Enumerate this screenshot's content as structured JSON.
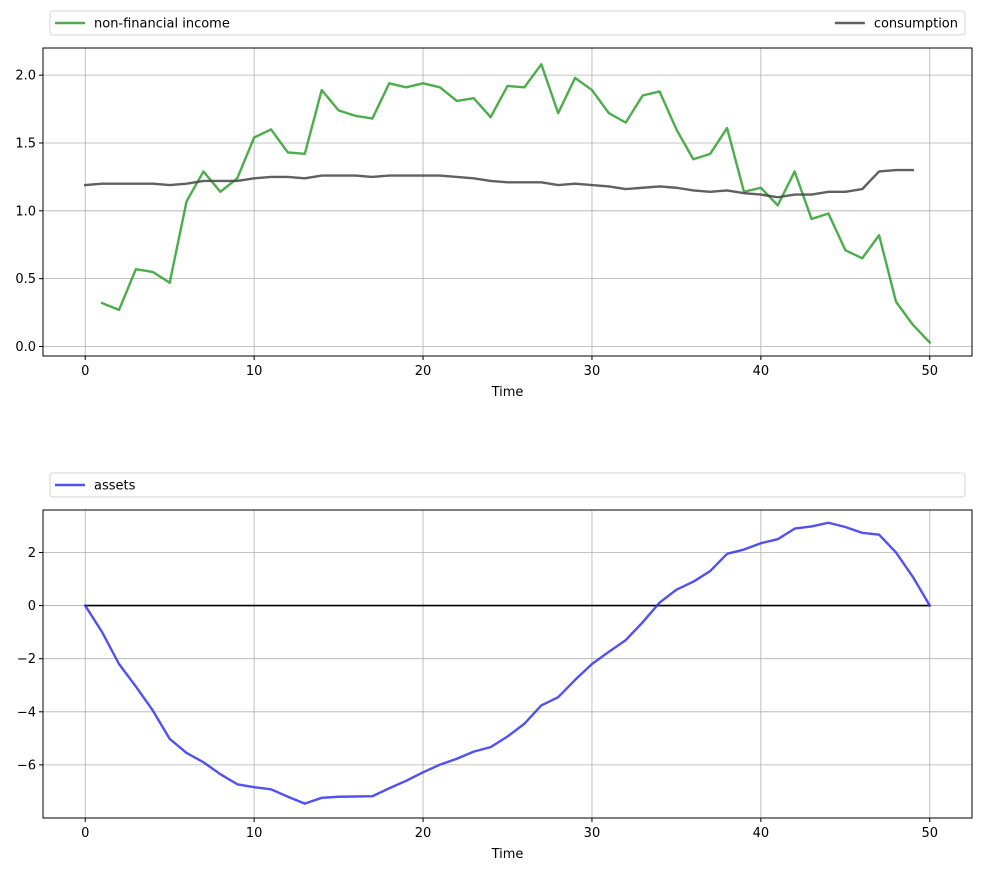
{
  "chart_data": [
    {
      "type": "line",
      "xlabel": "Time",
      "ylabel": "",
      "xlim": [
        -2.5,
        52.5
      ],
      "ylim": [
        -0.07,
        2.2
      ],
      "xticks": [
        0,
        10,
        20,
        30,
        40,
        50
      ],
      "yticks": [
        0.0,
        0.5,
        1.0,
        1.5,
        2.0
      ],
      "xtick_labels": [
        "0",
        "10",
        "20",
        "30",
        "40",
        "50"
      ],
      "ytick_labels": [
        "0.0",
        "0.5",
        "1.0",
        "1.5",
        "2.0"
      ],
      "grid": true,
      "legend_placement": "above plot, expanded across width",
      "series": [
        {
          "name": "non-financial income",
          "color": "#2ca02c",
          "x": [
            1,
            2,
            3,
            4,
            5,
            6,
            7,
            8,
            9,
            10,
            11,
            12,
            13,
            14,
            15,
            16,
            17,
            18,
            19,
            20,
            21,
            22,
            23,
            24,
            25,
            26,
            27,
            28,
            29,
            30,
            31,
            32,
            33,
            34,
            35,
            36,
            37,
            38,
            39,
            40,
            41,
            42,
            43,
            44,
            45,
            46,
            47,
            48,
            49,
            50
          ],
          "values": [
            0.32,
            0.27,
            0.57,
            0.55,
            0.47,
            1.07,
            1.29,
            1.14,
            1.24,
            1.54,
            1.6,
            1.43,
            1.42,
            1.89,
            1.74,
            1.7,
            1.68,
            1.94,
            1.91,
            1.94,
            1.91,
            1.81,
            1.83,
            1.69,
            1.92,
            1.91,
            2.08,
            1.72,
            1.98,
            1.89,
            1.72,
            1.65,
            1.85,
            1.88,
            1.6,
            1.38,
            1.42,
            1.61,
            1.14,
            1.17,
            1.04,
            1.29,
            0.94,
            0.98,
            0.71,
            0.65,
            0.82,
            0.33,
            0.16,
            0.03
          ]
        },
        {
          "name": "consumption",
          "color": "#444444",
          "x": [
            0,
            1,
            2,
            3,
            4,
            5,
            6,
            7,
            8,
            9,
            10,
            11,
            12,
            13,
            14,
            15,
            16,
            17,
            18,
            19,
            20,
            21,
            22,
            23,
            24,
            25,
            26,
            27,
            28,
            29,
            30,
            31,
            32,
            33,
            34,
            35,
            36,
            37,
            38,
            39,
            40,
            41,
            42,
            43,
            44,
            45,
            46,
            47,
            48,
            49
          ],
          "values": [
            1.19,
            1.2,
            1.2,
            1.2,
            1.2,
            1.19,
            1.2,
            1.22,
            1.22,
            1.22,
            1.24,
            1.25,
            1.25,
            1.24,
            1.26,
            1.26,
            1.26,
            1.25,
            1.26,
            1.26,
            1.26,
            1.26,
            1.25,
            1.24,
            1.22,
            1.21,
            1.21,
            1.21,
            1.19,
            1.2,
            1.19,
            1.18,
            1.16,
            1.17,
            1.18,
            1.17,
            1.15,
            1.14,
            1.15,
            1.13,
            1.12,
            1.1,
            1.12,
            1.12,
            1.14,
            1.14,
            1.16,
            1.29,
            1.3,
            1.3
          ]
        }
      ]
    },
    {
      "type": "line",
      "xlabel": "Time",
      "ylabel": "",
      "xlim": [
        -2.5,
        52.5
      ],
      "ylim": [
        -8.0,
        3.6
      ],
      "xticks": [
        0,
        10,
        20,
        30,
        40,
        50
      ],
      "yticks": [
        -6,
        -4,
        -2,
        0,
        2
      ],
      "xtick_labels": [
        "0",
        "10",
        "20",
        "30",
        "40",
        "50"
      ],
      "ytick_labels": [
        "−6",
        "−4",
        "−2",
        "0",
        "2"
      ],
      "grid": true,
      "legend_placement": "above plot, expanded across width",
      "zero_line": {
        "y": 0,
        "x_range": [
          0,
          50
        ],
        "color": "#000000"
      },
      "series": [
        {
          "name": "assets",
          "color": "#3333ee",
          "x": [
            0,
            1,
            2,
            3,
            4,
            5,
            6,
            7,
            8,
            9,
            10,
            11,
            12,
            13,
            14,
            15,
            16,
            17,
            18,
            19,
            20,
            21,
            22,
            23,
            24,
            25,
            26,
            27,
            28,
            29,
            30,
            31,
            32,
            33,
            34,
            35,
            36,
            37,
            38,
            39,
            40,
            41,
            42,
            43,
            44,
            45,
            46,
            47,
            48,
            49,
            50
          ],
          "values": [
            0.0,
            -1.0,
            -2.2,
            -3.05,
            -3.95,
            -5.02,
            -5.55,
            -5.9,
            -6.35,
            -6.73,
            -6.84,
            -6.92,
            -7.2,
            -7.46,
            -7.24,
            -7.2,
            -7.19,
            -7.18,
            -6.88,
            -6.6,
            -6.28,
            -5.99,
            -5.77,
            -5.5,
            -5.33,
            -4.93,
            -4.45,
            -3.76,
            -3.45,
            -2.8,
            -2.2,
            -1.74,
            -1.3,
            -0.63,
            0.11,
            0.6,
            0.9,
            1.3,
            1.95,
            2.11,
            2.35,
            2.5,
            2.9,
            2.98,
            3.12,
            2.96,
            2.74,
            2.67,
            2.0,
            1.08,
            0.0
          ]
        }
      ]
    }
  ]
}
